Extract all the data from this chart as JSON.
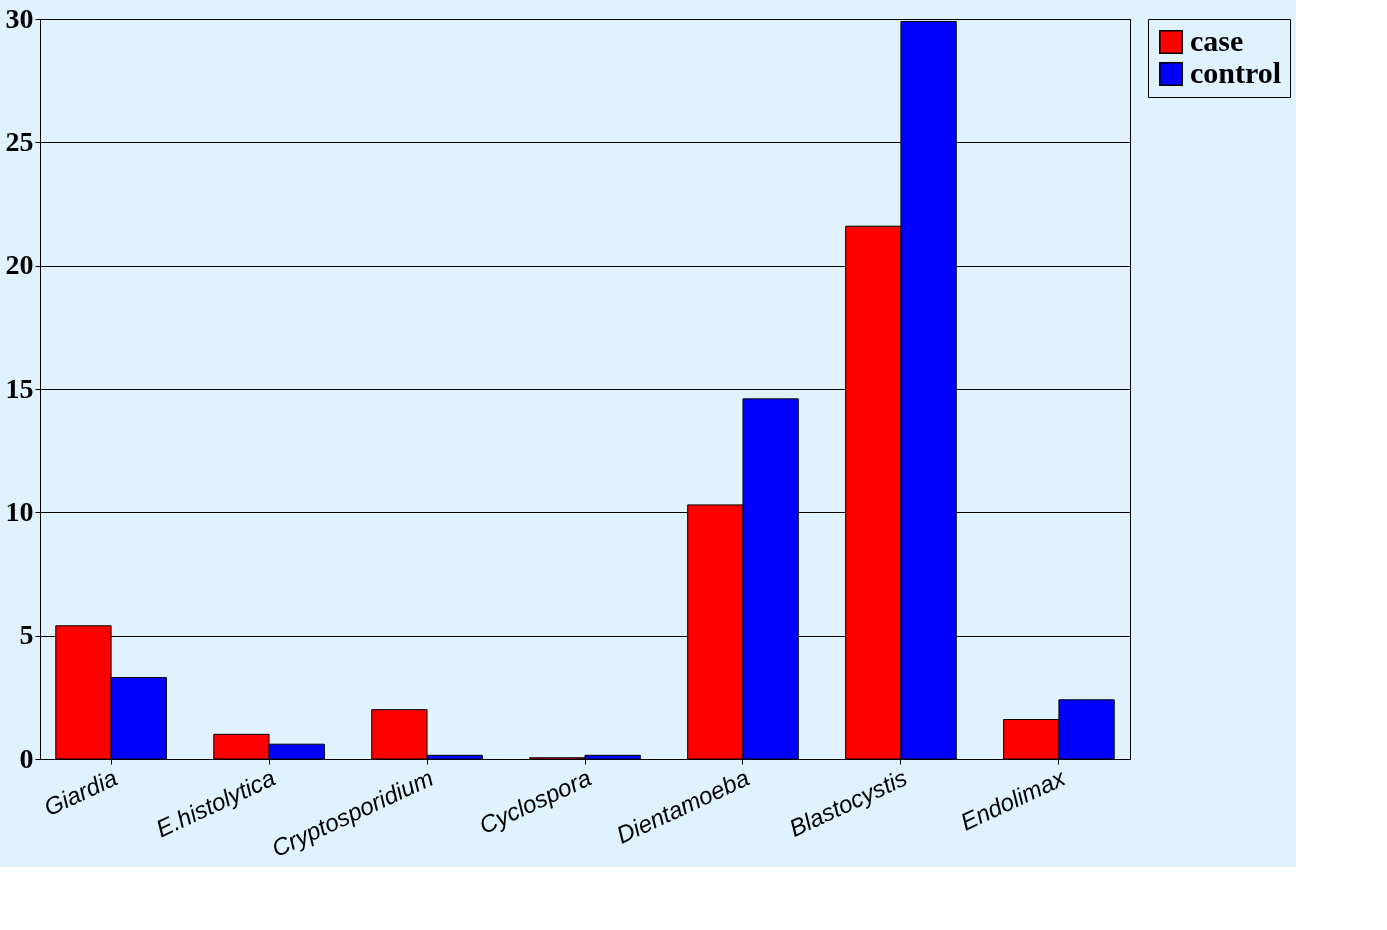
{
  "chart_data": {
    "type": "bar",
    "categories": [
      "Giardia",
      "E.histolytica",
      "Cryptosporidium",
      "Cyclospora",
      "Dientamoeba",
      "Blastocystis",
      "Endolimax"
    ],
    "series": [
      {
        "name": "case",
        "color": "#ff0000",
        "values": [
          5.4,
          1.0,
          2.0,
          0.05,
          10.3,
          21.6,
          1.6
        ]
      },
      {
        "name": "control",
        "color": "#0000ff",
        "values": [
          3.3,
          0.6,
          0.15,
          0.15,
          14.6,
          29.9,
          2.4
        ]
      }
    ],
    "ylim": [
      0,
      30
    ],
    "yticks": [
      0,
      5,
      10,
      15,
      20,
      25,
      30
    ],
    "grid": "y",
    "legend": "right"
  }
}
